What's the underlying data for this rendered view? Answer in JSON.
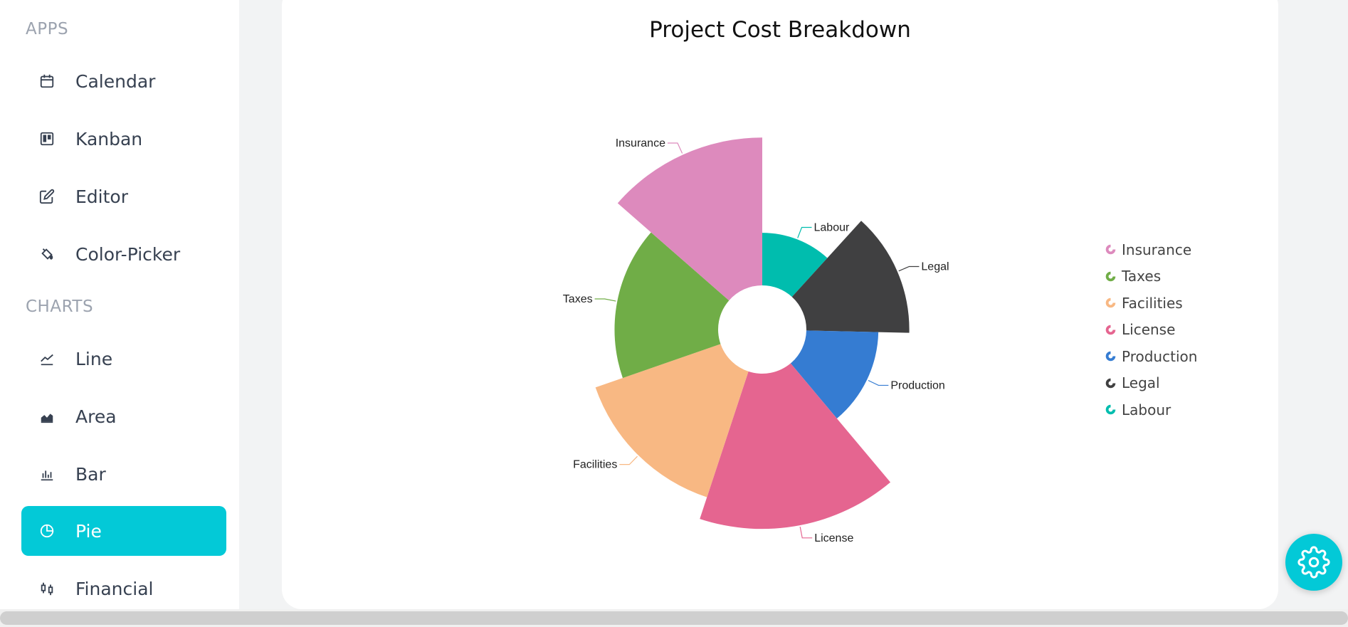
{
  "sidebar": {
    "apps_title": "APPS",
    "charts_title": "CHARTS",
    "apps": [
      {
        "label": "Calendar",
        "icon": "calendar-icon"
      },
      {
        "label": "Kanban",
        "icon": "kanban-icon"
      },
      {
        "label": "Editor",
        "icon": "edit-icon"
      },
      {
        "label": "Color-Picker",
        "icon": "paint-bucket-icon"
      }
    ],
    "charts": [
      {
        "label": "Line",
        "icon": "line-chart-icon"
      },
      {
        "label": "Area",
        "icon": "area-chart-icon"
      },
      {
        "label": "Bar",
        "icon": "bar-chart-icon"
      },
      {
        "label": "Pie",
        "icon": "pie-chart-icon",
        "active": true
      },
      {
        "label": "Financial",
        "icon": "candlestick-icon"
      }
    ]
  },
  "colors": {
    "accent": "#03c9d7"
  },
  "settings": {
    "icon": "gear-icon"
  },
  "chart_data": {
    "type": "pie",
    "title": "Project Cost Breakdown",
    "subtype": "rose-doughnut",
    "start_angle": 0,
    "inner_radius_ratio": 0.5,
    "legend_position": "right",
    "series": [
      {
        "name": "Labour",
        "share": 32.9,
        "value": 144,
        "color": "#00bdae"
      },
      {
        "name": "Legal",
        "share": 38.1,
        "value": 219,
        "color": "#404041"
      },
      {
        "name": "Production",
        "share": 37.9,
        "value": 173,
        "color": "#357cd2"
      },
      {
        "name": "License",
        "share": 45.3,
        "value": 297,
        "color": "#e56590"
      },
      {
        "name": "Facilities",
        "share": 40.9,
        "value": 263,
        "color": "#f8b883"
      },
      {
        "name": "Taxes",
        "share": 46.9,
        "value": 220,
        "color": "#70ad47"
      },
      {
        "name": "Insurance",
        "share": 38.0,
        "value": 286,
        "color": "#dd8abd"
      }
    ],
    "legend": [
      "Insurance",
      "Taxes",
      "Facilities",
      "License",
      "Production",
      "Legal",
      "Labour"
    ]
  }
}
